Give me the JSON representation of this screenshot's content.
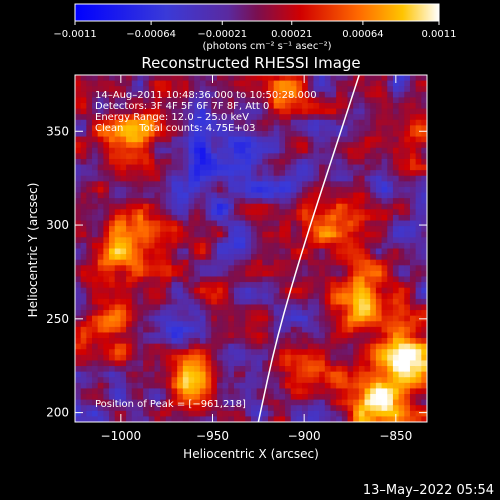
{
  "chart_data": {
    "type": "heatmap",
    "title": "Reconstructed RHESSI Image",
    "xlabel": "Heliocentric X (arcsec)",
    "ylabel": "Heliocentric Y (arcsec)",
    "xlim": [
      -1025,
      -833
    ],
    "ylim": [
      195,
      380
    ],
    "xticks": [
      {
        "value": -1000,
        "label": "−1000"
      },
      {
        "value": -950,
        "label": "−950"
      },
      {
        "value": -900,
        "label": "−900"
      },
      {
        "value": -850,
        "label": "−850"
      }
    ],
    "yticks": [
      {
        "value": 200,
        "label": "200"
      },
      {
        "value": 250,
        "label": "250"
      },
      {
        "value": 300,
        "label": "300"
      },
      {
        "value": 350,
        "label": "350"
      }
    ],
    "colorbar": {
      "range": [
        -0.0011,
        0.0011
      ],
      "ticks": [
        {
          "value": -0.0011,
          "label": "−0.0011"
        },
        {
          "value": -0.00064,
          "label": "−0.00064"
        },
        {
          "value": -0.00021,
          "label": "−0.00021"
        },
        {
          "value": 0.00021,
          "label": "0.00021"
        },
        {
          "value": 0.00064,
          "label": "0.00064"
        },
        {
          "value": 0.0011,
          "label": "0.0011"
        }
      ],
      "unit_label": "(photons cm⁻² s⁻¹ asec⁻²)"
    },
    "annotations": [
      "14–Aug–2011 10:48:36.000 to 10:50:28.000",
      "Detectors: 3F 4F 5F 6F 7F 8F, Att 0",
      "Energy Range: 12.0 – 25.0 keV",
      "Clean     Total counts: 4.75E+03"
    ],
    "peak_label": "Position of Peak = [−961,218]",
    "peak": [
      -961,
      218
    ],
    "limb_curve": [
      [
        -925,
        195
      ],
      [
        -915,
        240
      ],
      [
        -900,
        290
      ],
      [
        -885,
        335
      ],
      [
        -870,
        380
      ]
    ],
    "hot_spots": [
      {
        "x": -960,
        "y": 218,
        "amp": 0.0011,
        "r": 10
      },
      {
        "x": -845,
        "y": 228,
        "amp": 0.00105,
        "r": 13
      },
      {
        "x": -870,
        "y": 258,
        "amp": 0.00095,
        "r": 14
      },
      {
        "x": -860,
        "y": 205,
        "amp": 0.0009,
        "r": 12
      },
      {
        "x": -995,
        "y": 345,
        "amp": 0.00085,
        "r": 14
      },
      {
        "x": -1005,
        "y": 285,
        "amp": 0.0008,
        "r": 12
      },
      {
        "x": -978,
        "y": 298,
        "amp": 0.0007,
        "r": 12
      },
      {
        "x": -1005,
        "y": 245,
        "amp": 0.0007,
        "r": 11
      },
      {
        "x": -840,
        "y": 345,
        "amp": 0.0006,
        "r": 12
      },
      {
        "x": -885,
        "y": 300,
        "amp": 0.0006,
        "r": 12
      },
      {
        "x": -910,
        "y": 372,
        "amp": 0.00055,
        "r": 10
      },
      {
        "x": -900,
        "y": 220,
        "amp": 0.0005,
        "r": 11
      },
      {
        "x": -945,
        "y": 262,
        "amp": 0.0003,
        "r": 10
      }
    ],
    "cold_spots": [
      {
        "x": -955,
        "y": 325,
        "amp": -0.0004,
        "r": 18
      },
      {
        "x": -925,
        "y": 345,
        "amp": -0.00025,
        "r": 12
      },
      {
        "x": -975,
        "y": 240,
        "amp": -0.0002,
        "r": 12
      },
      {
        "x": -935,
        "y": 210,
        "amp": -0.0002,
        "r": 12
      }
    ]
  },
  "timestamp": "13–May–2022 05:54",
  "colors": {
    "background": "#000000",
    "text": "#ffffff",
    "limb": "#ffffff",
    "colormap": [
      "#0000ff",
      "#4b3cc8",
      "#5a2aa0",
      "#7a0f50",
      "#d10000",
      "#ff6a00",
      "#ffc400",
      "#ffffff"
    ]
  }
}
